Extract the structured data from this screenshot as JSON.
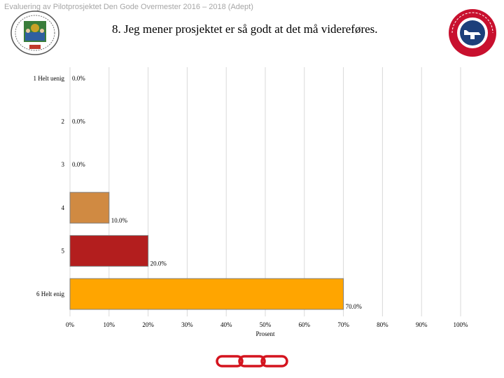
{
  "header": {
    "text": "Evaluering av Pilotprosjektet Den Gode Overmester 2016 – 2018 (Adept)"
  },
  "logos": {
    "left": "lodge-seal-emblem",
    "right": "odd-fellow-order-badge"
  },
  "colors": {
    "gridline": "#d9d9d9",
    "bar_border": "#7f7f7f"
  },
  "chart_data": {
    "type": "bar",
    "orientation": "horizontal",
    "title": "8. Jeg mener prosjektet er så godt at det må videreføres.",
    "categories": [
      "1 Helt uenig",
      "2",
      "3",
      "4",
      "5",
      "6 Helt enig"
    ],
    "values": [
      0.0,
      0.0,
      0.0,
      10.0,
      20.0,
      70.0
    ],
    "value_labels": [
      "0.0%",
      "0.0%",
      "0.0%",
      "10.0%",
      "20.0%",
      "70.0%"
    ],
    "bar_colors": [
      "#d08a42",
      "#d08a42",
      "#d08a42",
      "#d08a42",
      "#b31e1e",
      "#ffa500"
    ],
    "xlabel": "Prosent",
    "ylabel": "",
    "xlim": [
      0,
      100
    ],
    "xticks": [
      0,
      10,
      20,
      30,
      40,
      50,
      60,
      70,
      80,
      90,
      100
    ],
    "xtick_labels": [
      "0%",
      "10%",
      "20%",
      "30%",
      "40%",
      "50%",
      "60%",
      "70%",
      "80%",
      "90%",
      "100%"
    ],
    "grid": true
  }
}
